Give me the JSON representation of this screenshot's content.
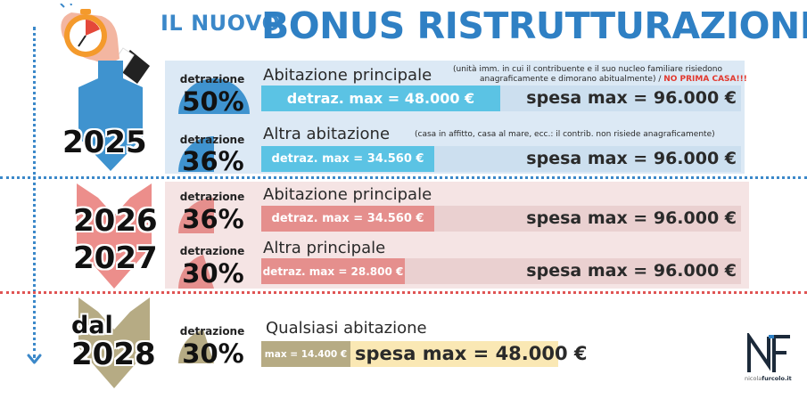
{
  "header": {
    "prefix": "IL NUOVO",
    "title": "BONUS RISTRUTTURAZIONE"
  },
  "periods": [
    {
      "year_lines": [
        "2025"
      ],
      "rows": [
        {
          "detrazione_label": "detrazione",
          "percent": "50%",
          "title": "Abitazione principale",
          "note_line1": "(unità imm. in cui il contribuente e il suo nucleo familiare risiedono",
          "note_line2": "anagraficamente e dimorano abitualmente) / ",
          "note_warning": "NO PRIMA CASA!!!",
          "detraz_max": "detraz. max = 48.000 €",
          "spesa_max": "spesa max = 96.000 €",
          "fill_fraction": 0.5
        },
        {
          "detrazione_label": "detrazione",
          "percent": "36%",
          "title": "Altra abitazione",
          "note_line1": "(casa in affitto, casa al mare, ecc.: il contrib. non risiede anagraficamente)",
          "detraz_max": "detraz. max = 34.560 €",
          "spesa_max": "spesa max = 96.000 €",
          "fill_fraction": 0.36
        }
      ]
    },
    {
      "year_lines": [
        "2026",
        "2027"
      ],
      "rows": [
        {
          "detrazione_label": "detrazione",
          "percent": "36%",
          "title": "Abitazione principale",
          "detraz_max": "detraz. max = 34.560 €",
          "spesa_max": "spesa max = 96.000 €",
          "fill_fraction": 0.36
        },
        {
          "detrazione_label": "detrazione",
          "percent": "30%",
          "title": "Altra principale",
          "detraz_max": "detraz. max = 28.800 €",
          "spesa_max": "spesa max = 96.000 €",
          "fill_fraction": 0.3
        }
      ]
    },
    {
      "year_lines": [
        "dal",
        "2028"
      ],
      "rows": [
        {
          "detrazione_label": "detrazione",
          "percent": "30%",
          "title": "Qualsiasi abitazione",
          "detraz_max": "max = 14.400 €",
          "spesa_max": "spesa max = 48.000 €",
          "fill_fraction": 0.3
        }
      ]
    }
  ],
  "logo": {
    "name_light": "nicola",
    "name_bold": "furcolo.it"
  },
  "colors": {
    "blue_title": "#2f80c4",
    "blue_fill": "#5bc3e4",
    "blue_track": "#ccdfef",
    "blue_dial": "#3f93cf",
    "pink_fill": "#e58f8d",
    "pink_track": "#ead0d0",
    "pink_dial": "#e58f8d",
    "gold_fill": "#b6ab84",
    "gold_track": "#fae8b4",
    "gold_dial": "#b6ab84",
    "red_sep": "#e05454"
  }
}
